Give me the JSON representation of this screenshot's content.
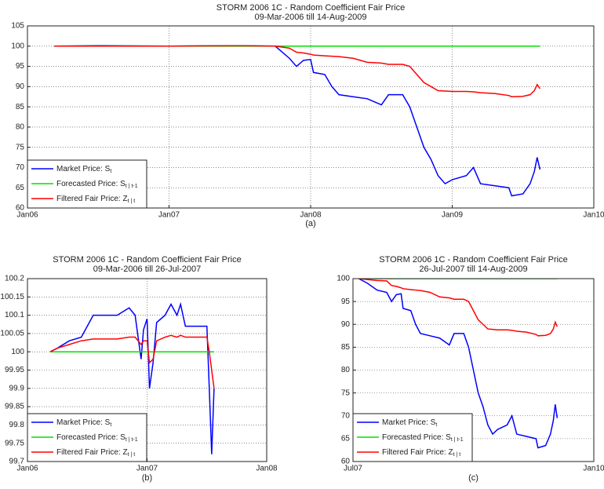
{
  "chart_data": [
    {
      "type": "line",
      "title": "STORM 2006 1C - Random Coefficient Fair Price",
      "subtitle": "09-Mar-2006 till 14-Aug-2009",
      "caption": "(a)",
      "xlim": [
        2006,
        2010
      ],
      "xticks": [
        {
          "value": 2006,
          "label": "Jan06"
        },
        {
          "value": 2007,
          "label": "Jan07"
        },
        {
          "value": 2008,
          "label": "Jan08"
        },
        {
          "value": 2009,
          "label": "Jan09"
        },
        {
          "value": 2010,
          "label": "Jan10"
        }
      ],
      "ylim": [
        60,
        105
      ],
      "yticks": [
        60,
        65,
        70,
        75,
        80,
        85,
        90,
        95,
        100,
        105
      ],
      "grid": true,
      "legend": "lower left",
      "x": [
        2006.19,
        2006.5,
        2007.0,
        2007.5,
        2007.75,
        2007.85,
        2007.9,
        2007.95,
        2008.0,
        2008.02,
        2008.1,
        2008.15,
        2008.2,
        2008.3,
        2008.4,
        2008.5,
        2008.55,
        2008.65,
        2008.7,
        2008.75,
        2008.8,
        2008.85,
        2008.9,
        2008.95,
        2009.0,
        2009.1,
        2009.15,
        2009.2,
        2009.3,
        2009.4,
        2009.42,
        2009.5,
        2009.55,
        2009.58,
        2009.6,
        2009.62
      ],
      "series": [
        {
          "name": "Market Price: S",
          "subscript": "t",
          "color": "#0000ff",
          "values": [
            100,
            100.1,
            100,
            100.1,
            100,
            97,
            95,
            96.5,
            96.7,
            93.5,
            93,
            90,
            88,
            87.5,
            87,
            85.5,
            88,
            88,
            85,
            80,
            75,
            72,
            68,
            66,
            67,
            68,
            70,
            66,
            65.5,
            65,
            63,
            63.5,
            66,
            69,
            72.5,
            69.5
          ]
        },
        {
          "name": "Forecasted Price: S",
          "subscript": "t | t-1",
          "color": "#00e000",
          "values": [
            100,
            100,
            100,
            100,
            100,
            100,
            100,
            100,
            100,
            100,
            100,
            100,
            100,
            100,
            100,
            100,
            100,
            100,
            100,
            100,
            100,
            100,
            100,
            100,
            100,
            100,
            100,
            100,
            100,
            100,
            100,
            100,
            100,
            100,
            100,
            100
          ]
        },
        {
          "name": "Filtered Fair Price: Z",
          "subscript": "t | t",
          "color": "#ff0000",
          "values": [
            100,
            100,
            100,
            100.1,
            100,
            99.5,
            98.5,
            98.3,
            98,
            97.8,
            97.6,
            97.5,
            97.4,
            97,
            96,
            95.8,
            95.5,
            95.5,
            95,
            93,
            91,
            90,
            89,
            88.9,
            88.8,
            88.8,
            88.7,
            88.5,
            88.3,
            87.8,
            87.5,
            87.6,
            88,
            89,
            90.5,
            89.5
          ]
        }
      ]
    },
    {
      "type": "line",
      "title": "STORM 2006 1C - Random Coefficient Fair Price",
      "subtitle": "09-Mar-2006 till 26-Jul-2007",
      "caption": "(b)",
      "xlim": [
        2006,
        2008
      ],
      "xticks": [
        {
          "value": 2006,
          "label": "Jan06"
        },
        {
          "value": 2007,
          "label": "Jan07"
        },
        {
          "value": 2008,
          "label": "Jan08"
        }
      ],
      "ylim": [
        99.7,
        100.2
      ],
      "yticks": [
        99.7,
        99.75,
        99.8,
        99.85,
        99.9,
        99.95,
        100,
        100.05,
        100.1,
        100.15,
        100.2
      ],
      "grid": true,
      "legend": "lower left",
      "x": [
        2006.19,
        2006.25,
        2006.35,
        2006.45,
        2006.55,
        2006.75,
        2006.85,
        2006.9,
        2006.95,
        2006.97,
        2007.0,
        2007.02,
        2007.05,
        2007.08,
        2007.15,
        2007.2,
        2007.25,
        2007.28,
        2007.32,
        2007.5,
        2007.52,
        2007.54,
        2007.56
      ],
      "series": [
        {
          "name": "Market Price: S",
          "subscript": "t",
          "color": "#0000ff",
          "values": [
            100,
            100.01,
            100.03,
            100.04,
            100.1,
            100.1,
            100.12,
            100.1,
            99.98,
            100.06,
            100.09,
            99.9,
            99.97,
            100.08,
            100.1,
            100.13,
            100.1,
            100.13,
            100.07,
            100.07,
            99.9,
            99.72,
            99.9
          ]
        },
        {
          "name": "Forecasted Price: S",
          "subscript": "t | t-1",
          "color": "#00e000",
          "values": [
            100,
            100,
            100,
            100,
            100,
            100,
            100,
            100,
            100,
            100,
            100,
            100,
            100,
            100,
            100,
            100,
            100,
            100,
            100,
            100,
            100,
            100,
            100
          ]
        },
        {
          "name": "Filtered Fair Price: Z",
          "subscript": "t | t",
          "color": "#ff0000",
          "values": [
            100,
            100.01,
            100.02,
            100.03,
            100.035,
            100.035,
            100.04,
            100.04,
            100.02,
            100.03,
            100.03,
            99.97,
            99.98,
            100.03,
            100.04,
            100.045,
            100.04,
            100.045,
            100.04,
            100.04,
            100,
            99.95,
            99.9
          ]
        }
      ]
    },
    {
      "type": "line",
      "title": "STORM 2006 1C - Random Coefficient Fair Price",
      "subtitle": "26-Jul-2007 till 14-Aug-2009",
      "caption": "(c)",
      "xlim": [
        2007.5,
        2010
      ],
      "xticks": [
        {
          "value": 2007.5,
          "label": "Jul07"
        },
        {
          "value": 2010,
          "label": "Jan10"
        }
      ],
      "ylim": [
        60,
        100
      ],
      "yticks": [
        60,
        65,
        70,
        75,
        80,
        85,
        90,
        95,
        100
      ],
      "grid": true,
      "legend": "lower left",
      "x": [
        2007.56,
        2007.65,
        2007.75,
        2007.85,
        2007.9,
        2007.95,
        2008.0,
        2008.02,
        2008.1,
        2008.15,
        2008.2,
        2008.3,
        2008.4,
        2008.5,
        2008.55,
        2008.65,
        2008.7,
        2008.75,
        2008.8,
        2008.85,
        2008.9,
        2008.95,
        2009.0,
        2009.1,
        2009.15,
        2009.2,
        2009.3,
        2009.4,
        2009.42,
        2009.5,
        2009.55,
        2009.58,
        2009.6,
        2009.62
      ],
      "series": [
        {
          "name": "Market Price: S",
          "subscript": "t",
          "color": "#0000ff",
          "values": [
            100,
            99,
            97.5,
            97,
            95,
            96.5,
            96.7,
            93.5,
            93,
            90,
            88,
            87.5,
            87,
            85.5,
            88,
            88,
            85,
            80,
            75,
            72,
            68,
            66,
            67,
            68,
            70,
            66,
            65.5,
            65,
            63,
            63.5,
            66,
            69,
            72.5,
            69.5
          ]
        },
        {
          "name": "Forecasted Price: S",
          "subscript": "t | t-1",
          "color": "#00e000",
          "values": [
            100,
            100,
            100,
            100,
            100,
            100,
            100,
            100,
            100,
            100,
            100,
            100,
            100,
            100,
            100,
            100,
            100,
            100,
            100,
            100,
            100,
            100,
            100,
            100,
            100,
            100,
            100,
            100,
            100,
            100,
            100,
            100,
            100,
            100
          ]
        },
        {
          "name": "Filtered Fair Price: Z",
          "subscript": "t | t",
          "color": "#ff0000",
          "values": [
            100,
            99.8,
            99.6,
            99.5,
            98.5,
            98.3,
            98,
            97.8,
            97.6,
            97.5,
            97.4,
            97,
            96,
            95.8,
            95.5,
            95.5,
            95,
            93,
            91,
            90,
            89,
            88.9,
            88.8,
            88.8,
            88.7,
            88.5,
            88.3,
            87.8,
            87.5,
            87.6,
            88,
            89,
            90.5,
            89.5
          ]
        }
      ]
    }
  ]
}
